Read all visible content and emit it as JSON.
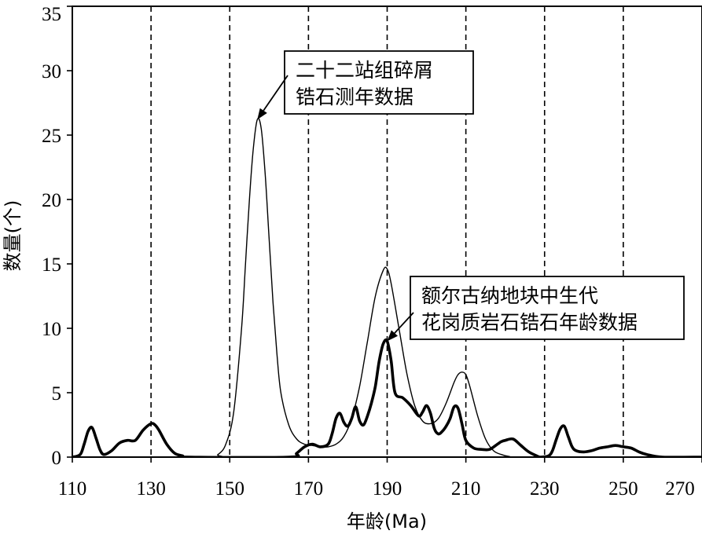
{
  "chart_data": {
    "type": "line",
    "xlabel": "年龄(Ma)",
    "ylabel": "数量(个)",
    "xlim": [
      110,
      270
    ],
    "ylim": [
      0,
      35
    ],
    "xticks": [
      110,
      130,
      150,
      170,
      190,
      210,
      230,
      250,
      270
    ],
    "yticks": [
      0,
      5,
      10,
      15,
      20,
      25,
      30,
      35
    ],
    "vlines": [
      130,
      150,
      170,
      190,
      210,
      230,
      250
    ],
    "series": [
      {
        "style": "thin",
        "x": [
          110,
          145,
          147,
          149,
          151,
          153,
          154,
          155,
          156,
          157,
          158,
          159,
          160,
          161,
          162,
          163,
          165,
          167,
          169,
          171,
          173,
          175,
          177,
          179,
          181,
          183,
          185,
          187,
          189,
          190,
          191,
          193,
          195,
          197,
          199,
          201,
          203,
          205,
          207,
          208,
          209,
          210,
          211,
          213,
          215,
          217,
          219,
          221,
          225,
          270
        ],
        "y": [
          0,
          0,
          0.2,
          1.0,
          3.5,
          10,
          15,
          20,
          24,
          26.2,
          25.5,
          22,
          17,
          12,
          8,
          5,
          2.5,
          1.4,
          1.0,
          0.9,
          0.8,
          0.8,
          1.0,
          1.6,
          3.0,
          5.5,
          9,
          12.5,
          14.5,
          14.6,
          13.5,
          10,
          6.5,
          4.0,
          2.8,
          2.6,
          3.0,
          4.2,
          5.8,
          6.4,
          6.6,
          6.4,
          5.5,
          3.2,
          1.4,
          0.5,
          0.2,
          0.05,
          0,
          0
        ]
      },
      {
        "style": "thick",
        "x": [
          110,
          112,
          113,
          114,
          115,
          116,
          117,
          118,
          120,
          122,
          124,
          126,
          128,
          130,
          131,
          132,
          134,
          136,
          138,
          140,
          165,
          167,
          169,
          171,
          173,
          175,
          176,
          177,
          178,
          179,
          180,
          181,
          182,
          183,
          184,
          185,
          186,
          187,
          188,
          189,
          190,
          191,
          192,
          194,
          196,
          198,
          199,
          200,
          201,
          202,
          203,
          204,
          205,
          206,
          207,
          208,
          209,
          210,
          212,
          214,
          216,
          218,
          219,
          220,
          222,
          224,
          226,
          228,
          229,
          231,
          232,
          233,
          234,
          235,
          236,
          237,
          238,
          240,
          242,
          244,
          246,
          248,
          250,
          252,
          254,
          256,
          260,
          270
        ],
        "y": [
          0,
          0.2,
          1.0,
          2.0,
          2.3,
          1.5,
          0.6,
          0.2,
          0.5,
          1.1,
          1.3,
          1.3,
          2.1,
          2.6,
          2.5,
          2.1,
          1.0,
          0.3,
          0.1,
          0,
          0,
          0.3,
          0.8,
          1.0,
          0.8,
          1.0,
          1.8,
          3.0,
          3.4,
          2.7,
          2.4,
          3.0,
          3.9,
          2.8,
          2.5,
          3.2,
          4.2,
          5.5,
          7.5,
          8.8,
          9.0,
          7.5,
          5.0,
          4.6,
          4.0,
          3.2,
          3.5,
          4.0,
          3.4,
          2.2,
          1.8,
          2.0,
          2.4,
          3.0,
          3.9,
          3.8,
          2.6,
          1.3,
          0.7,
          0.6,
          0.6,
          1.0,
          1.2,
          1.3,
          1.4,
          0.9,
          0.4,
          0.1,
          0,
          0.1,
          0.5,
          1.4,
          2.2,
          2.4,
          1.6,
          0.8,
          0.5,
          0.4,
          0.5,
          0.7,
          0.8,
          0.9,
          0.8,
          0.7,
          0.4,
          0.2,
          0,
          0
        ]
      }
    ],
    "annotations": [
      {
        "lines": [
          "二十二站组碎屑",
          "锆石测年数据"
        ],
        "points_to": [
          157,
          26.2
        ]
      },
      {
        "lines": [
          "额尔古纳地块中生代",
          "花岗质岩石锆石年龄数据"
        ],
        "points_to": [
          190,
          9.0
        ]
      }
    ]
  }
}
